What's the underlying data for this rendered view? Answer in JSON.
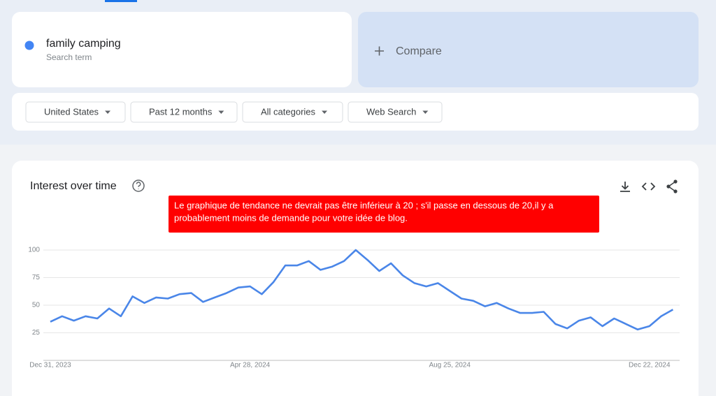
{
  "search_term": {
    "label": "family camping",
    "caption": "Search term"
  },
  "compare": {
    "label": "Compare"
  },
  "filters": [
    "United States",
    "Past 12 months",
    "All categories",
    "Web Search"
  ],
  "card": {
    "title": "Interest over time"
  },
  "annotation": [
    "Le graphique de tendance ne devrait pas être inférieur à 20 ; s'il passe en dessous de 20,il y a",
    "probablement moins de demande pour votre idée de blog."
  ],
  "chart_data": {
    "type": "line",
    "categories": [
      "Dec 31, 2023",
      null,
      null,
      null,
      null,
      null,
      null,
      null,
      null,
      null,
      null,
      null,
      null,
      null,
      null,
      null,
      null,
      "Apr 28, 2024",
      null,
      null,
      null,
      null,
      null,
      null,
      null,
      null,
      null,
      null,
      null,
      null,
      null,
      null,
      null,
      null,
      "Aug 25, 2024",
      null,
      null,
      null,
      null,
      null,
      null,
      null,
      null,
      null,
      null,
      null,
      null,
      null,
      null,
      null,
      null,
      "Dec 22, 2024",
      null,
      null
    ],
    "values": [
      35,
      40,
      36,
      40,
      38,
      47,
      40,
      58,
      52,
      57,
      56,
      60,
      61,
      53,
      57,
      61,
      66,
      67,
      60,
      71,
      86,
      86,
      90,
      82,
      85,
      90,
      100,
      91,
      81,
      88,
      77,
      70,
      67,
      70,
      63,
      56,
      54,
      49,
      52,
      47,
      43,
      43,
      44,
      33,
      29,
      36,
      39,
      31,
      38,
      33,
      28,
      31,
      40,
      46
    ],
    "color": "#4a86e8",
    "ylim": [
      0,
      100
    ],
    "yticks": [
      25,
      50,
      75,
      100
    ],
    "grid": true
  }
}
